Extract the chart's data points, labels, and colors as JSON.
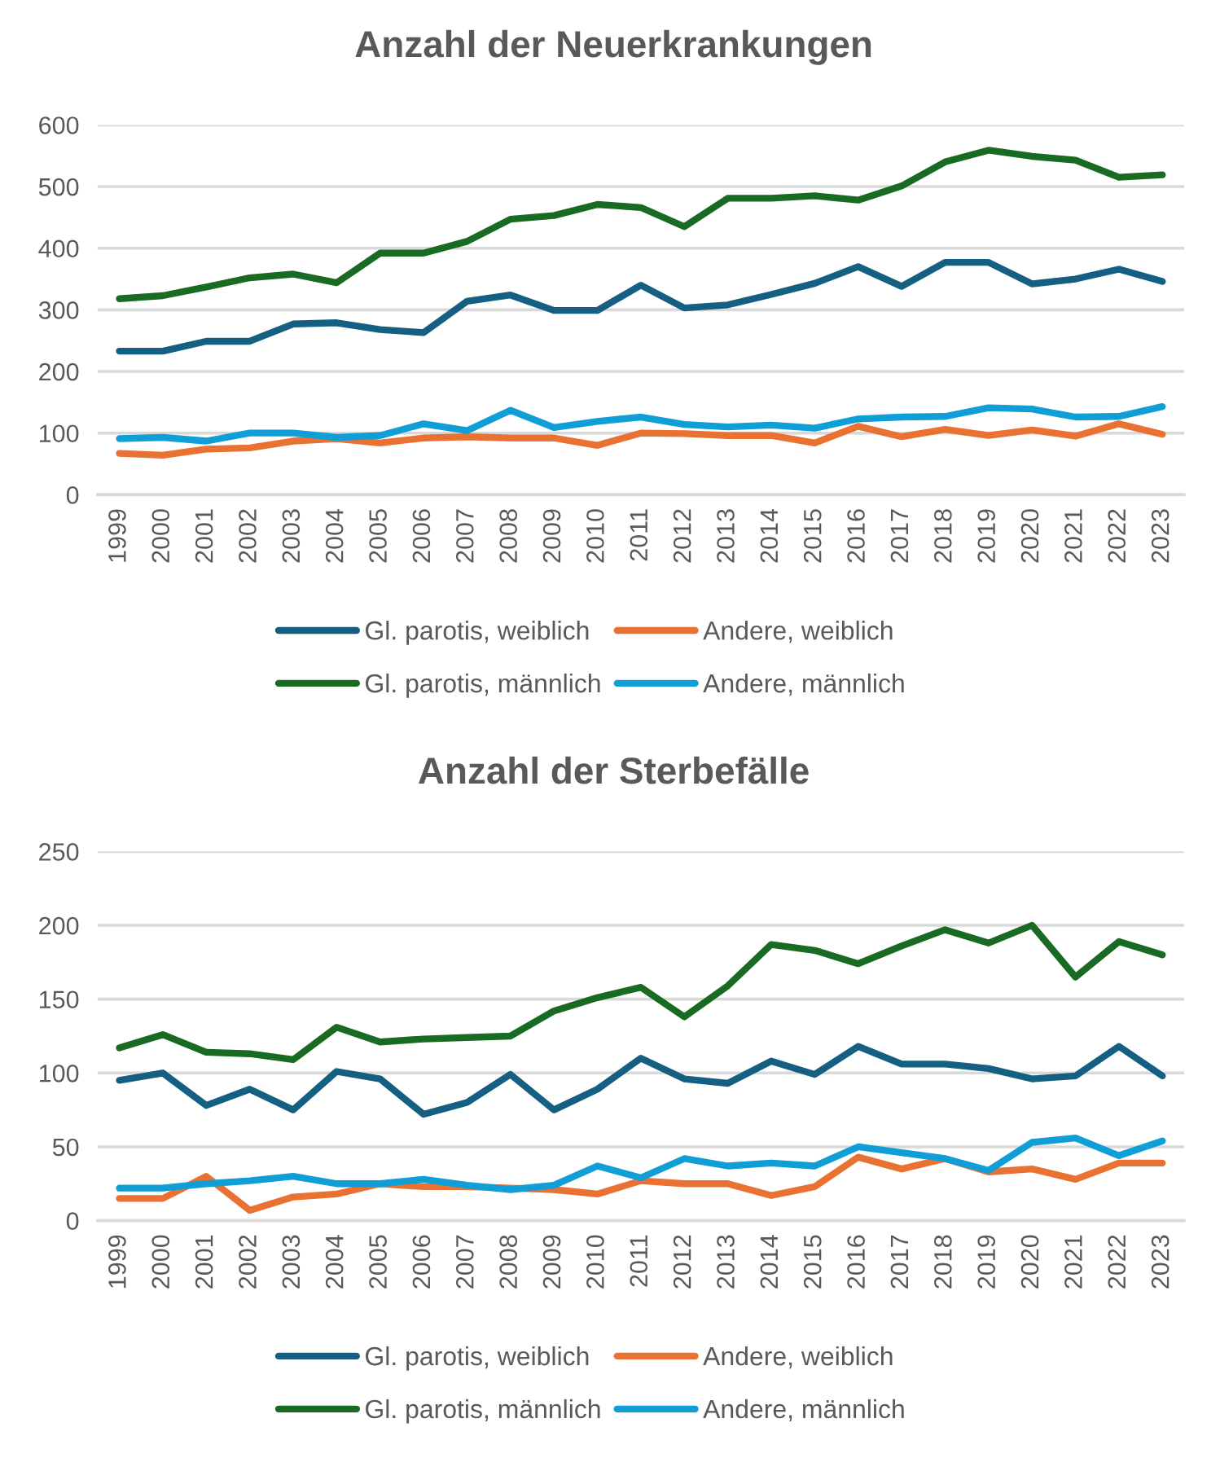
{
  "chart_data": [
    {
      "type": "line",
      "title": "Anzahl der Neuerkrankungen",
      "categories": [
        "1999",
        "2000",
        "2001",
        "2002",
        "2003",
        "2004",
        "2005",
        "2006",
        "2007",
        "2008",
        "2009",
        "2010",
        "2011",
        "2012",
        "2013",
        "2014",
        "2015",
        "2016",
        "2017",
        "2018",
        "2019",
        "2020",
        "2021",
        "2022",
        "2023"
      ],
      "series": [
        {
          "name": "Gl. parotis, weiblich",
          "color": "#156082",
          "values": [
            233,
            233,
            249,
            249,
            277,
            279,
            268,
            263,
            314,
            324,
            299,
            299,
            340,
            303,
            308,
            325,
            343,
            370,
            338,
            377,
            377,
            342,
            350,
            366,
            346
          ]
        },
        {
          "name": "Andere, weiblich",
          "color": "#e97132",
          "values": [
            67,
            64,
            74,
            76,
            87,
            91,
            84,
            92,
            94,
            92,
            92,
            80,
            100,
            99,
            96,
            96,
            84,
            111,
            94,
            106,
            96,
            105,
            95,
            115,
            98
          ]
        },
        {
          "name": "Gl. parotis, männlich",
          "color": "#196b24",
          "values": [
            318,
            323,
            337,
            352,
            358,
            344,
            392,
            392,
            411,
            447,
            453,
            471,
            466,
            435,
            481,
            481,
            485,
            478,
            501,
            540,
            559,
            549,
            543,
            515,
            519
          ]
        },
        {
          "name": "Andere, männlich",
          "color": "#0f9ed5",
          "values": [
            91,
            93,
            87,
            100,
            100,
            93,
            96,
            115,
            104,
            137,
            109,
            119,
            126,
            114,
            110,
            113,
            108,
            123,
            126,
            127,
            141,
            139,
            126,
            127,
            143
          ]
        }
      ],
      "ylim": [
        0,
        600
      ],
      "yticks": [
        0,
        100,
        200,
        300,
        400,
        500,
        600
      ],
      "grid": "y",
      "legend": "bottom",
      "line_style": "solid"
    },
    {
      "type": "line",
      "title": "Anzahl der Sterbefälle",
      "categories": [
        "1999",
        "2000",
        "2001",
        "2002",
        "2003",
        "2004",
        "2005",
        "2006",
        "2007",
        "2008",
        "2009",
        "2010",
        "2011",
        "2012",
        "2013",
        "2014",
        "2015",
        "2016",
        "2017",
        "2018",
        "2019",
        "2020",
        "2021",
        "2022",
        "2023"
      ],
      "series": [
        {
          "name": "Gl. parotis, weiblich",
          "color": "#156082",
          "values": [
            95,
            100,
            78,
            89,
            75,
            101,
            96,
            72,
            80,
            99,
            75,
            89,
            110,
            96,
            93,
            108,
            99,
            118,
            106,
            106,
            103,
            96,
            98,
            118,
            98
          ]
        },
        {
          "name": "Andere, weiblich",
          "color": "#e97132",
          "values": [
            15,
            15,
            30,
            7,
            16,
            18,
            25,
            23,
            23,
            22,
            21,
            18,
            27,
            25,
            25,
            17,
            23,
            43,
            35,
            42,
            33,
            35,
            28,
            39,
            39
          ]
        },
        {
          "name": "Gl. parotis, männlich",
          "color": "#196b24",
          "values": [
            117,
            126,
            114,
            113,
            109,
            131,
            121,
            123,
            124,
            125,
            142,
            151,
            158,
            138,
            159,
            187,
            183,
            174,
            186,
            197,
            188,
            200,
            165,
            189,
            180
          ]
        },
        {
          "name": "Andere, männlich",
          "color": "#0f9ed5",
          "values": [
            22,
            22,
            25,
            27,
            30,
            25,
            25,
            28,
            24,
            21,
            24,
            37,
            29,
            42,
            37,
            39,
            37,
            50,
            46,
            42,
            34,
            53,
            56,
            44,
            54
          ]
        }
      ],
      "ylim": [
        0,
        250
      ],
      "yticks": [
        0,
        50,
        100,
        150,
        200,
        250
      ],
      "grid": "y",
      "legend": "bottom",
      "line_style": "solid"
    }
  ]
}
